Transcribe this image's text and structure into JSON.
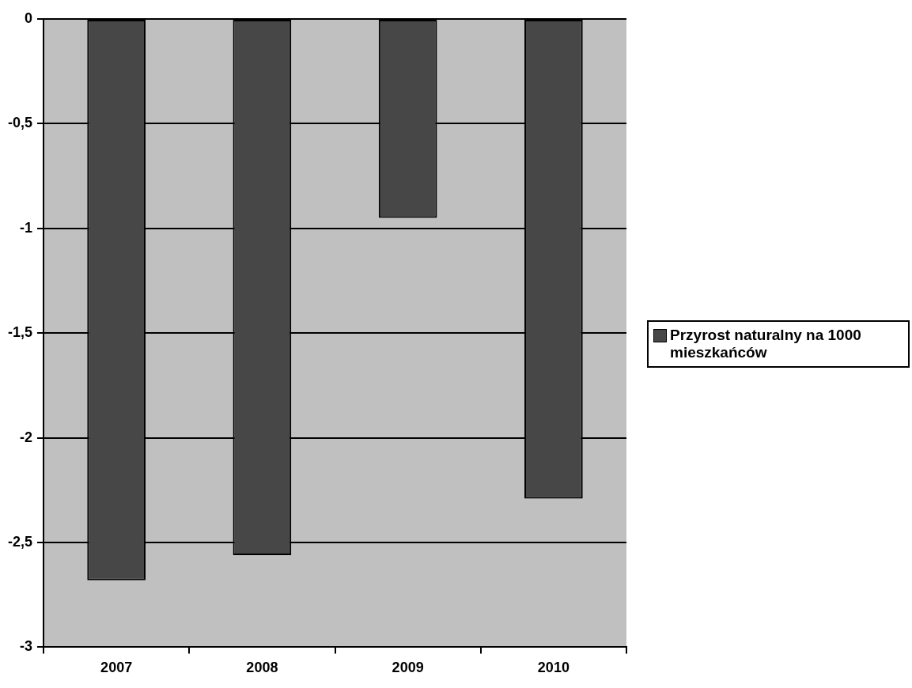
{
  "chart_data": {
    "type": "bar",
    "categories": [
      "2007",
      "2008",
      "2009",
      "2010"
    ],
    "series": [
      {
        "name": "Przyrost naturalny na 1000 mieszkańców",
        "color": "#474747",
        "values": [
          -2.68,
          -2.56,
          -0.95,
          -2.29
        ]
      }
    ],
    "ylim": [
      -3,
      0
    ],
    "yticks": [
      0,
      {
        "value": -0.5,
        "label": "-0,5"
      },
      -1,
      {
        "value": -1.5,
        "label": "-1,5"
      },
      -2,
      {
        "value": -2.5,
        "label": "-2,5"
      },
      -3
    ],
    "grid": "y",
    "legend": "right"
  }
}
